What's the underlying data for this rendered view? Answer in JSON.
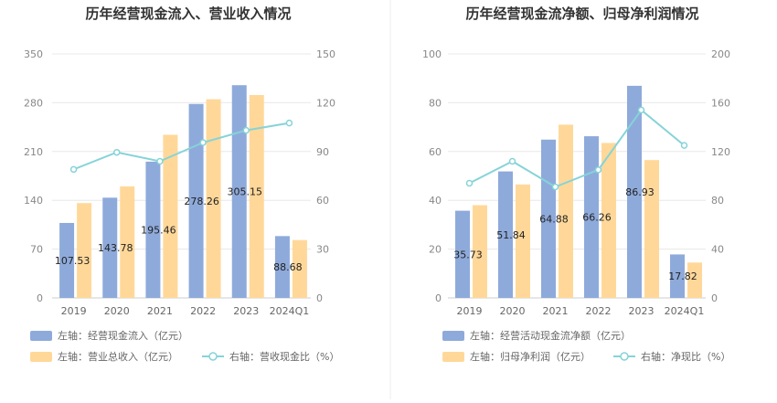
{
  "colors": {
    "bar_left": "#8eaadb",
    "bar_right": "#ffd899",
    "line": "#86d3d8",
    "grid": "#e8e8e8",
    "divider": "#eeeeee"
  },
  "chart_data": [
    {
      "type": "bar",
      "title": "历年经营现金流入、营业收入情况",
      "categories": [
        "2019",
        "2020",
        "2021",
        "2022",
        "2023",
        "2024Q1"
      ],
      "series": [
        {
          "name": "左轴：经营现金流入（亿元）",
          "axis": "left",
          "kind": "bar",
          "values": [
            107.53,
            143.78,
            195.46,
            278.26,
            305.15,
            88.68
          ],
          "labels_shown": true
        },
        {
          "name": "左轴：营业总收入（亿元）",
          "axis": "left",
          "kind": "bar",
          "values": [
            136,
            160,
            234,
            285,
            291,
            83
          ],
          "labels_shown": false
        },
        {
          "name": "右轴：营收现金比（%）",
          "axis": "right",
          "kind": "line",
          "values": [
            79,
            89.5,
            84,
            95.5,
            103,
            107.5
          ],
          "labels_shown": false
        }
      ],
      "left_axis": {
        "min": 0,
        "max": 350,
        "ticks": [
          "0",
          "70",
          "140",
          "210",
          "280",
          "350"
        ]
      },
      "right_axis": {
        "min": 0,
        "max": 150,
        "ticks": [
          "0",
          "30",
          "60",
          "90",
          "120",
          "150"
        ]
      },
      "grid": true,
      "legend_position": "bottom-left"
    },
    {
      "type": "bar",
      "title": "历年经营现金流净额、归母净利润情况",
      "categories": [
        "2019",
        "2020",
        "2021",
        "2022",
        "2023",
        "2024Q1"
      ],
      "series": [
        {
          "name": "左轴：经营活动现金流净额（亿元）",
          "axis": "left",
          "kind": "bar",
          "values": [
            35.73,
            51.84,
            64.88,
            66.26,
            86.93,
            17.82
          ],
          "labels_shown": true
        },
        {
          "name": "左轴：归母净利润（亿元）",
          "axis": "left",
          "kind": "bar",
          "values": [
            38,
            46.5,
            71,
            63.5,
            56.5,
            14.5
          ],
          "labels_shown": false
        },
        {
          "name": "右轴：净现比（%）",
          "axis": "right",
          "kind": "line",
          "values": [
            94,
            112,
            91,
            105,
            154,
            125
          ],
          "labels_shown": false
        }
      ],
      "left_axis": {
        "min": 0,
        "max": 100,
        "ticks": [
          "0",
          "20",
          "40",
          "60",
          "80",
          "100"
        ]
      },
      "right_axis": {
        "min": 0,
        "max": 200,
        "ticks": [
          "0",
          "40",
          "80",
          "120",
          "160",
          "200"
        ]
      },
      "grid": true,
      "legend_position": "bottom-left"
    }
  ]
}
